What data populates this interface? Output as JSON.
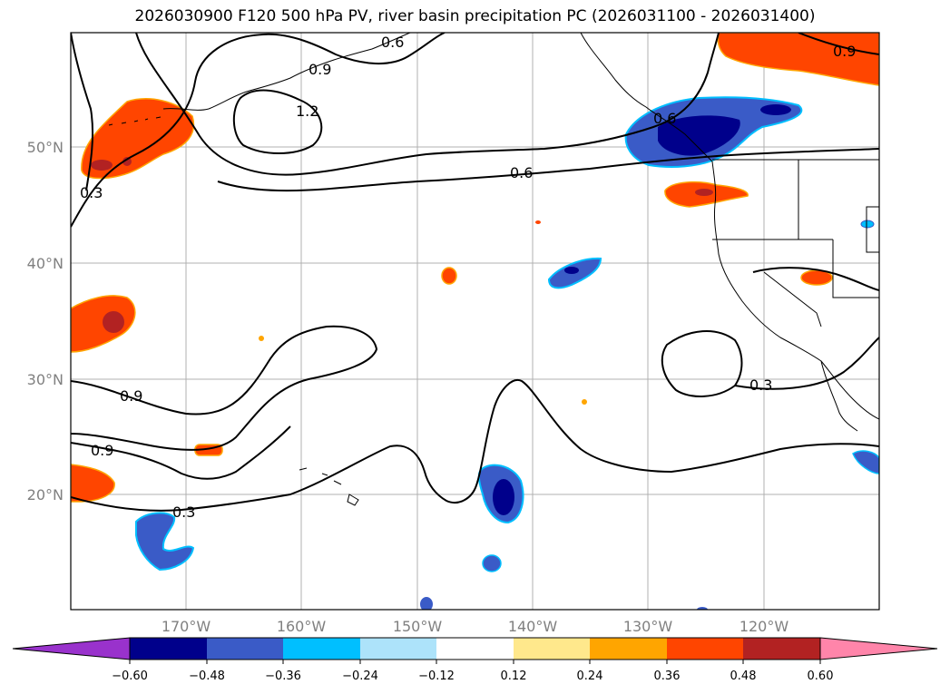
{
  "title": "2026030900 F120 500 hPa PV, river basin precipitation PC (2026031100 - 2026031400)",
  "map": {
    "lat_labels": [
      "50°N",
      "40°N",
      "30°N",
      "20°N"
    ],
    "lon_labels": [
      "170°W",
      "160°W",
      "150°W",
      "140°W",
      "130°W",
      "120°W"
    ],
    "contour_labels": [
      "0.6",
      "0.9",
      "1.2",
      "0.3",
      "0.6",
      "0.6",
      "0.9",
      "0.3",
      "0.9",
      "0.3",
      "0.9"
    ]
  },
  "colorbar": {
    "ticks": [
      "−0.60",
      "−0.48",
      "−0.36",
      "−0.24",
      "−0.12",
      "0.12",
      "0.24",
      "0.36",
      "0.48",
      "0.60"
    ],
    "colors": {
      "under": "#9932cc",
      "bins": [
        "#00008b",
        "#3a5bc7",
        "#00bfff",
        "#ade3fa",
        "#ffffff",
        "#ffe88c",
        "#ffa500",
        "#ff4500",
        "#b22222"
      ],
      "over": "#ff85aa"
    }
  },
  "palette": {
    "neg_strong": "#00008b",
    "neg_mid": "#3a5bc7",
    "neg_light": "#00bfff",
    "pos_mid": "#ff4500",
    "pos_strong": "#b22222",
    "pos_light": "#ffa500",
    "pos_faint": "#ffe88c"
  }
}
